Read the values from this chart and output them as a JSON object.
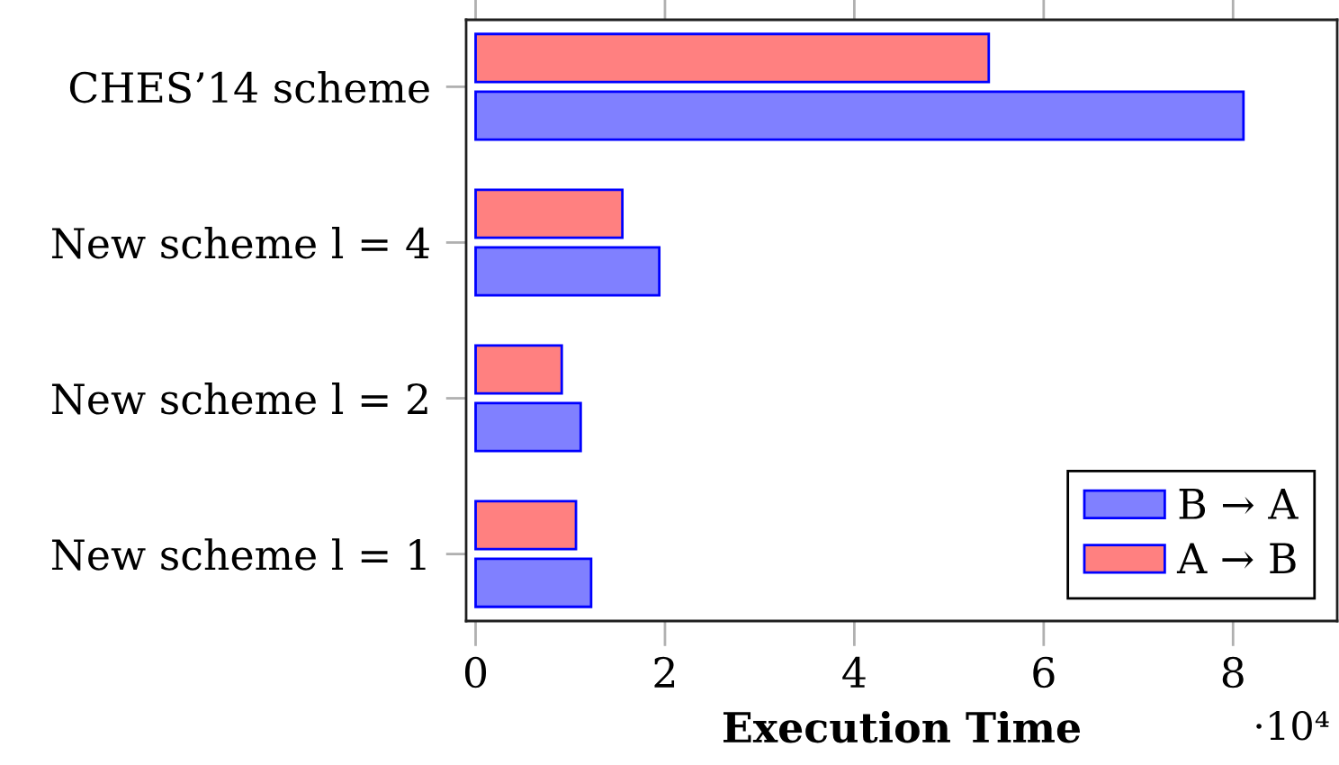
{
  "chart_data": {
    "type": "bar",
    "orientation": "horizontal",
    "categories": [
      "CHES’14 scheme",
      "New scheme l = 4",
      "New scheme l = 2",
      "New scheme l = 1"
    ],
    "series": [
      {
        "name": "B → A",
        "color": "#8080ff",
        "values": [
          8.11,
          1.94,
          1.11,
          1.22
        ]
      },
      {
        "name": "A → B",
        "color": "#ff8080",
        "values": [
          5.42,
          1.55,
          0.91,
          1.06
        ]
      }
    ],
    "xlim": [
      -0.1,
      9.1
    ],
    "xticks": [
      0,
      2,
      4,
      6,
      8
    ],
    "xlabel": "Execution Time",
    "annotations": [
      "·10⁴"
    ],
    "legend": "bottom right"
  }
}
